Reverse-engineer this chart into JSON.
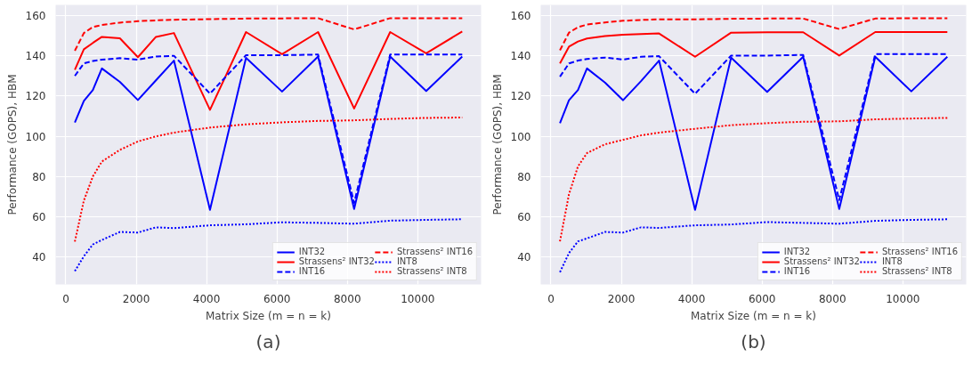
{
  "chart_data": [
    {
      "type": "line",
      "xlabel": "Matrix Size (m = n = k)",
      "ylabel": "Performance (GOPS), HBM",
      "annotations": [
        "(a)"
      ],
      "x": [
        256,
        512,
        768,
        1024,
        1536,
        2048,
        2560,
        3072,
        4096,
        5120,
        6144,
        7168,
        8192,
        9216,
        10240,
        11264
      ],
      "xlim": [
        -290,
        11800
      ],
      "ylim": [
        26.3,
        165.3
      ],
      "xticks": [
        0,
        2000,
        4000,
        6000,
        8000,
        10000
      ],
      "yticks": [
        40,
        60,
        80,
        100,
        120,
        140,
        160
      ],
      "grid": true,
      "legend": "bottom right",
      "series": [
        {
          "name": "INT32",
          "color": "#0000ff",
          "line_style": "solid",
          "values": [
            106.8,
            117.5,
            123,
            133.7,
            127,
            118,
            127.8,
            137.6,
            63.4,
            139,
            122.2,
            139.6,
            63.8,
            139.6,
            122.5,
            139.6
          ]
        },
        {
          "name": "Strassens² INT32",
          "color": "#ff0000",
          "line_style": "solid",
          "values": [
            133,
            143.2,
            146.4,
            149.4,
            148.7,
            139.3,
            149.4,
            151.3,
            113.1,
            151.8,
            140.8,
            151.8,
            113.8,
            151.8,
            141.2,
            152.1
          ]
        },
        {
          "name": "INT16",
          "color": "#0000ff",
          "line_style": "dashed",
          "values": [
            130,
            136.2,
            137.4,
            138.1,
            138.8,
            138.1,
            139.6,
            140,
            121.2,
            140.3,
            140.3,
            140.6,
            66.8,
            140.6,
            140.6,
            140.6
          ]
        },
        {
          "name": "Strassens² INT16",
          "color": "#ff0000",
          "line_style": "dashed",
          "values": [
            142.5,
            151.3,
            154.3,
            155.3,
            156.5,
            157.2,
            157.6,
            157.9,
            158.2,
            158.5,
            158.6,
            158.7,
            153.1,
            158.7,
            158.7,
            158.7
          ]
        },
        {
          "name": "INT8",
          "color": "#0000ff",
          "line_style": "dotted",
          "values": [
            32.9,
            40.3,
            46.2,
            48.4,
            52.4,
            52.1,
            54.7,
            54.3,
            55.7,
            56.2,
            57.2,
            56.9,
            56.5,
            58,
            58.4,
            58.7
          ]
        },
        {
          "name": "Strassens² INT8",
          "color": "#ff0000",
          "line_style": "dotted",
          "values": [
            47.6,
            68,
            80,
            87.4,
            93.2,
            97.4,
            99.9,
            101.8,
            104.3,
            105.9,
            106.9,
            107.6,
            107.9,
            108.6,
            109.1,
            109.3
          ]
        }
      ]
    },
    {
      "type": "line",
      "xlabel": "Matrix Size (m = n = k)",
      "ylabel": "Performance (GOPS), HBM",
      "annotations": [
        "(b)"
      ],
      "x": [
        256,
        512,
        768,
        1024,
        1536,
        2048,
        2560,
        3072,
        4096,
        5120,
        6144,
        7168,
        8192,
        9216,
        10240,
        11264
      ],
      "xlim": [
        -290,
        11800
      ],
      "ylim": [
        26.3,
        165.3
      ],
      "xticks": [
        0,
        2000,
        4000,
        6000,
        8000,
        10000
      ],
      "yticks": [
        40,
        60,
        80,
        100,
        120,
        140,
        160
      ],
      "grid": true,
      "legend": "bottom right",
      "series": [
        {
          "name": "INT32",
          "color": "#0000ff",
          "line_style": "solid",
          "values": [
            106.5,
            117.9,
            123,
            133.7,
            126.7,
            117.9,
            127.4,
            137.6,
            63.4,
            139.1,
            122,
            139.5,
            63.8,
            139.5,
            122.3,
            139.5
          ]
        },
        {
          "name": "Strassens² INT32",
          "color": "#ff0000",
          "line_style": "solid",
          "values": [
            136.2,
            144.5,
            147.1,
            148.6,
            149.8,
            150.5,
            150.8,
            151.1,
            139.5,
            151.5,
            151.7,
            151.7,
            140.1,
            151.8,
            151.8,
            151.8
          ]
        },
        {
          "name": "INT16",
          "color": "#0000ff",
          "line_style": "dashed",
          "values": [
            129.6,
            136.2,
            137.6,
            138.4,
            139.1,
            138.1,
            139.5,
            139.8,
            121.1,
            140.1,
            140.1,
            140.4,
            68.2,
            140.8,
            140.8,
            140.8
          ]
        },
        {
          "name": "Strassens² INT16",
          "color": "#ff0000",
          "line_style": "dashed",
          "values": [
            142.7,
            151.5,
            154.2,
            155.5,
            156.6,
            157.4,
            157.8,
            158.1,
            158.1,
            158.4,
            158.5,
            158.5,
            153.3,
            158.5,
            158.7,
            158.7
          ]
        },
        {
          "name": "INT8",
          "color": "#0000ff",
          "line_style": "dotted",
          "values": [
            32.4,
            41.9,
            47.7,
            49.2,
            52.4,
            52.1,
            54.7,
            54.4,
            55.7,
            56.1,
            57.3,
            56.9,
            56.5,
            57.9,
            58.4,
            58.7
          ]
        },
        {
          "name": "Strassens² INT8",
          "color": "#ff0000",
          "line_style": "dotted",
          "values": [
            47.7,
            71.1,
            85,
            91.6,
            96,
            98.2,
            100.4,
            101.8,
            103.7,
            105.5,
            106.5,
            107.2,
            107.4,
            108.4,
            108.8,
            109.1
          ]
        }
      ]
    }
  ]
}
